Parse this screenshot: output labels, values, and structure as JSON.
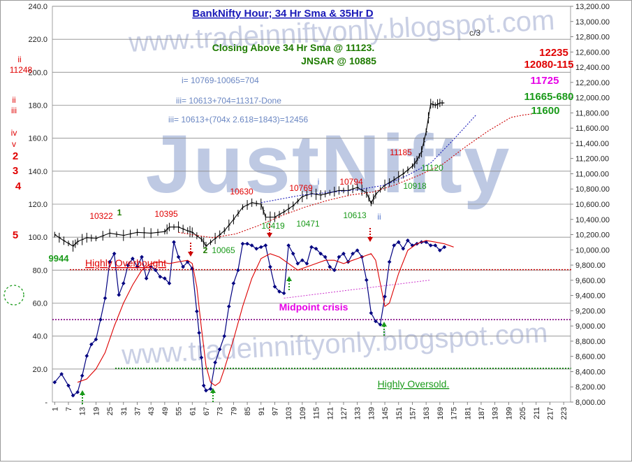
{
  "chart_data": {
    "type": "line",
    "title": "BankNifty Hour; 34 Hr Sma & 35Hr D",
    "watermarks": [
      "www.tradeinniftyonly.blogspot.com",
      "JustNifty",
      "www.tradeinniftyonly.blogspot.com"
    ],
    "left_axis": {
      "ylim": [
        0,
        240
      ],
      "ticks": [
        "-",
        "20.0",
        "40.0",
        "60.0",
        "80.0",
        "100.0",
        "120.0",
        "140.0",
        "160.0",
        "180.0",
        "200.0",
        "220.0",
        "240.0"
      ]
    },
    "right_axis": {
      "ylim": [
        8000,
        13200
      ],
      "ticks": [
        "8,000.00",
        "8,200.00",
        "8,400.00",
        "8,600.00",
        "8,800.00",
        "9,000.00",
        "9,200.00",
        "9,400.00",
        "9,600.00",
        "9,800.00",
        "10,000.00",
        "10,200.00",
        "10,400.00",
        "10,600.00",
        "10,800.00",
        "11,000.00",
        "11,200.00",
        "11,400.00",
        "11,600.00",
        "11,800.00",
        "12,000.00",
        "12,200.00",
        "12,400.00",
        "12,600.00",
        "12,800.00",
        "13,000.00",
        "13,200.00"
      ]
    },
    "x_axis": {
      "xlim": [
        1,
        226
      ],
      "ticks": [
        "1",
        "7",
        "13",
        "19",
        "25",
        "31",
        "37",
        "43",
        "49",
        "55",
        "61",
        "67",
        "73",
        "79",
        "85",
        "91",
        "97",
        "103",
        "109",
        "115",
        "121",
        "127",
        "133",
        "139",
        "145",
        "151",
        "157",
        "163",
        "169",
        "175",
        "181",
        "187",
        "193",
        "199",
        "205",
        "211",
        "217",
        "223"
      ]
    },
    "series": [
      {
        "name": "",
        "axis": "right",
        "color": "#000000",
        "style": "price-bars",
        "x": [
          1,
          5,
          9,
          11,
          15,
          19,
          25,
          31,
          37,
          43,
          49,
          51,
          55,
          59,
          61,
          65,
          67,
          71,
          75,
          79,
          83,
          87,
          91,
          93,
          97,
          101,
          105,
          109,
          113,
          117,
          121,
          125,
          129,
          133,
          137,
          139,
          141,
          145,
          149,
          153,
          157,
          159,
          161,
          163,
          165,
          167,
          169,
          171
        ],
        "values": [
          10200,
          10120,
          10050,
          10110,
          10160,
          10150,
          10220,
          10190,
          10230,
          10220,
          10240,
          10300,
          10300,
          10250,
          10230,
          10140,
          10050,
          10150,
          10250,
          10400,
          10560,
          10620,
          10600,
          10430,
          10430,
          10500,
          10580,
          10700,
          10740,
          10720,
          10750,
          10780,
          10780,
          10820,
          10750,
          10610,
          10730,
          10850,
          10920,
          11000,
          11100,
          11180,
          11290,
          11550,
          11920,
          11900,
          11930,
          11930
        ]
      },
      {
        "name": "",
        "axis": "right",
        "color": "#cc0000",
        "style": "dotted",
        "x": [
          55,
          65,
          70,
          80,
          90,
          100,
          110,
          120,
          130,
          140,
          150,
          160,
          170,
          180,
          190,
          200,
          205,
          210
        ],
        "values": [
          10230,
          10180,
          10160,
          10210,
          10320,
          10450,
          10560,
          10650,
          10720,
          10760,
          10860,
          10980,
          11120,
          11350,
          11560,
          11740,
          11770,
          11790
        ]
      },
      {
        "name": "",
        "axis": "right",
        "color": "#1a1ab8",
        "style": "dotted",
        "x": [
          91,
          109,
          133,
          145,
          155,
          165,
          175,
          185
        ],
        "values": [
          10620,
          10720,
          10790,
          10850,
          10980,
          11140,
          11450,
          11780
        ]
      },
      {
        "name": "",
        "axis": "left",
        "color": "#000080",
        "style": "line-markers",
        "x": [
          1,
          4,
          7,
          9,
          11,
          13,
          15,
          17,
          19,
          21,
          23,
          25,
          27,
          29,
          31,
          33,
          35,
          37,
          39,
          41,
          43,
          45,
          47,
          49,
          51,
          53,
          55,
          57,
          59,
          61,
          63,
          64,
          65,
          66,
          67,
          69,
          71,
          73,
          75,
          77,
          79,
          81,
          83,
          85,
          87,
          89,
          91,
          93,
          95,
          97,
          99,
          101,
          103,
          105,
          107,
          109,
          111,
          113,
          115,
          117,
          119,
          121,
          123,
          125,
          127,
          129,
          131,
          133,
          135,
          137,
          139,
          141,
          143,
          145,
          147,
          149,
          151,
          153,
          155,
          157,
          159,
          161,
          163,
          165,
          167,
          169,
          171
        ],
        "values": [
          12,
          17,
          10,
          4,
          6,
          16,
          28,
          35,
          38,
          50,
          63,
          85,
          90,
          65,
          72,
          83,
          87,
          82,
          88,
          75,
          82,
          80,
          76,
          75,
          72,
          97,
          88,
          82,
          85,
          81,
          55,
          42,
          27,
          10,
          7,
          8,
          24,
          32,
          40,
          58,
          72,
          80,
          96,
          96,
          95,
          93,
          94,
          95,
          82,
          70,
          67,
          66,
          95,
          90,
          84,
          86,
          84,
          94,
          93,
          90,
          88,
          82,
          80,
          88,
          90,
          85,
          90,
          92,
          88,
          74,
          54,
          49,
          47,
          64,
          85,
          95,
          97,
          93,
          98,
          95,
          96,
          97,
          97,
          95,
          95,
          92,
          94
        ]
      },
      {
        "name": "",
        "axis": "left",
        "color": "#dd0000",
        "style": "line",
        "x": [
          11,
          15,
          19,
          23,
          27,
          31,
          35,
          39,
          43,
          47,
          51,
          55,
          59,
          61,
          63,
          65,
          67,
          69,
          71,
          73,
          75,
          79,
          83,
          87,
          91,
          95,
          99,
          103,
          107,
          111,
          115,
          119,
          123,
          127,
          131,
          135,
          139,
          141,
          143,
          145,
          147,
          151,
          155,
          159,
          163,
          167,
          171,
          175
        ],
        "values": [
          12,
          14,
          20,
          30,
          46,
          60,
          71,
          80,
          84,
          85,
          84,
          85,
          86,
          84,
          70,
          45,
          22,
          12,
          10,
          12,
          20,
          38,
          58,
          75,
          87,
          90,
          88,
          84,
          80,
          82,
          84,
          86,
          86,
          84,
          86,
          88,
          90,
          86,
          72,
          58,
          60,
          78,
          92,
          96,
          98,
          97,
          96,
          94
        ]
      }
    ],
    "levels": [
      {
        "axis": "left",
        "value": 80.3,
        "color": "#cc0000",
        "style": "dotted"
      },
      {
        "axis": "left",
        "value": 50,
        "color": "#800080",
        "style": "dotted"
      },
      {
        "axis": "left",
        "value": 20.5,
        "color": "#008000",
        "style": "dotted"
      }
    ],
    "trend_lines": [
      {
        "color": "#cc33cc",
        "style": "dotted",
        "x1": 101,
        "v1": 63,
        "x2": 165,
        "v2": 74
      }
    ],
    "annotations": [
      {
        "text": "Closing Above  34 Hr Sma @ 11123.",
        "color": "#1e7b00",
        "bold": true
      },
      {
        "text": "JNSAR @ 10885",
        "color": "#1e7b00",
        "bold": true
      },
      {
        "text": "i= 10769-10065=704",
        "color": "#6a86c2"
      },
      {
        "text": "iii= 10613+704=11317-Done",
        "color": "#6a86c2"
      },
      {
        "text": "iii= 10613+(704x  2.618=1843)=12456",
        "color": "#6a86c2"
      },
      {
        "text": "c/3",
        "color": "#333333"
      },
      {
        "text": "12235",
        "color": "#e00000",
        "bold": true
      },
      {
        "text": "12080-115",
        "color": "#e00000",
        "bold": true
      },
      {
        "text": "11725",
        "color": "#e600e6",
        "bold": true
      },
      {
        "text": "11665-680",
        "color": "#1a9a1a",
        "bold": true
      },
      {
        "text": "11600",
        "color": "#1a9a1a",
        "bold": true
      },
      {
        "text": "ii",
        "color": "#e00000"
      },
      {
        "text": "11248",
        "color": "#e00000"
      },
      {
        "text": "ii",
        "color": "#e00000"
      },
      {
        "text": "iii",
        "color": "#e00000"
      },
      {
        "text": "iv",
        "color": "#e00000"
      },
      {
        "text": "v",
        "color": "#e00000"
      },
      {
        "text": "2",
        "color": "#e00000",
        "bold": true
      },
      {
        "text": "3",
        "color": "#e00000",
        "bold": true
      },
      {
        "text": "4",
        "color": "#e00000",
        "bold": true
      },
      {
        "text": "5",
        "color": "#e00000",
        "bold": true
      },
      {
        "text": "9944",
        "color": "#1a9a1a",
        "bold": true
      },
      {
        "text": "10322",
        "color": "#e00000"
      },
      {
        "text": "1",
        "color": "#1e7b00",
        "bold": true
      },
      {
        "text": "10395",
        "color": "#e00000"
      },
      {
        "text": "2",
        "color": "#1e7b00",
        "bold": true
      },
      {
        "text": "10065",
        "color": "#1a9a1a"
      },
      {
        "text": "10630",
        "color": "#e00000"
      },
      {
        "text": "10419",
        "color": "#1a9a1a"
      },
      {
        "text": "10769",
        "color": "#e00000"
      },
      {
        "text": "i",
        "color": "#5577cc"
      },
      {
        "text": "10471",
        "color": "#1a9a1a"
      },
      {
        "text": "10794",
        "color": "#e00000"
      },
      {
        "text": "10613",
        "color": "#1a9a1a"
      },
      {
        "text": "ii",
        "color": "#5577cc"
      },
      {
        "text": "11185",
        "color": "#e00000"
      },
      {
        "text": "11120",
        "color": "#1a9a1a"
      },
      {
        "text": "10918",
        "color": "#1a9a1a"
      },
      {
        "text": "Highly Overbought",
        "color": "#e00000",
        "underline": true
      },
      {
        "text": "Midpoint crisis",
        "color": "#e600e6",
        "bold": true
      },
      {
        "text": "Highly Oversold.",
        "color": "#1a9a1a",
        "underline": true
      }
    ],
    "arrows": [
      {
        "color": "#cc0000",
        "direction": "down"
      },
      {
        "color": "#cc0000",
        "direction": "down"
      },
      {
        "color": "#cc0000",
        "direction": "down"
      },
      {
        "color": "#1a9a1a",
        "direction": "up"
      },
      {
        "color": "#1a9a1a",
        "direction": "up"
      },
      {
        "color": "#1a9a1a",
        "direction": "up"
      },
      {
        "color": "#1a9a1a",
        "direction": "up"
      }
    ],
    "grid": true
  }
}
